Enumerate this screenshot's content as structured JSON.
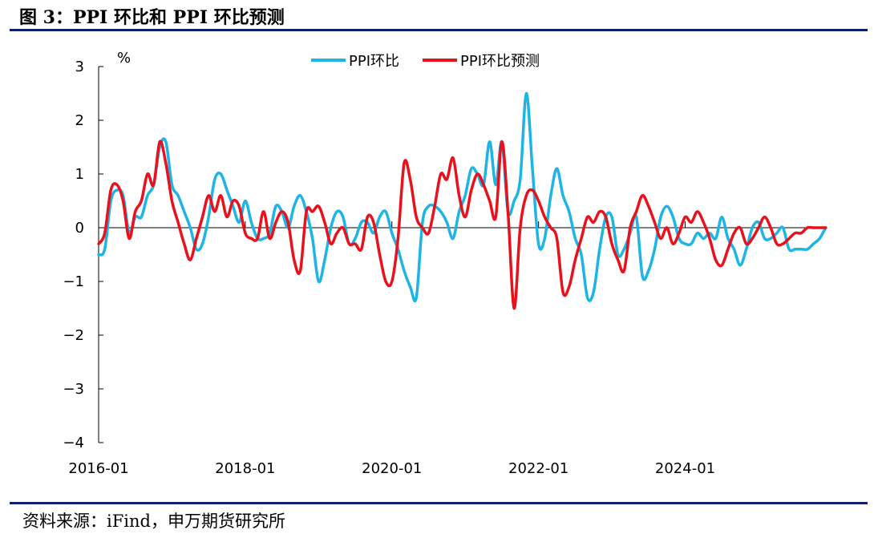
{
  "title": "图 3：PPI 环比和 PPI 环比预测",
  "source": "资料来源：iFind，申万期货研究所",
  "chart_data": {
    "type": "line",
    "ylabel": "%",
    "ylim": [
      -4,
      3
    ],
    "yticks": [
      3,
      2,
      1,
      0,
      -1,
      -2,
      -3,
      -4
    ],
    "ytick_labels": [
      "3",
      "2",
      "1",
      "0",
      "−1",
      "−2",
      "−3",
      "−4"
    ],
    "xticks": [
      "2016-01",
      "2018-01",
      "2020-01",
      "2022-01",
      "2024-01"
    ],
    "x_start": "2016-01",
    "x_end": "2025-12",
    "legend_position": "top-center",
    "series": [
      {
        "name": "PPI环比",
        "color": "#1eb4e6",
        "values": [
          -0.5,
          -0.4,
          0.5,
          0.7,
          0.6,
          -0.1,
          0.2,
          0.2,
          0.6,
          0.8,
          1.5,
          1.6,
          0.8,
          0.6,
          0.3,
          0.0,
          -0.4,
          -0.3,
          0.2,
          0.9,
          1.0,
          0.7,
          0.4,
          0.1,
          0.5,
          0.1,
          -0.2,
          -0.2,
          -0.1,
          0.4,
          0.3,
          0.0,
          0.4,
          0.6,
          0.3,
          -0.2,
          -1.0,
          -0.6,
          0.0,
          0.3,
          0.2,
          -0.3,
          -0.2,
          0.1,
          0.1,
          -0.1,
          0.2,
          0.3,
          -0.1,
          -0.4,
          -0.8,
          -1.1,
          -1.3,
          0.1,
          0.4,
          0.4,
          0.3,
          0.1,
          -0.2,
          0.3,
          0.6,
          1.1,
          1.0,
          0.8,
          1.6,
          0.8,
          1.6,
          0.3,
          0.5,
          0.9,
          2.5,
          1.1,
          -0.3,
          -0.2,
          0.6,
          1.1,
          0.6,
          0.3,
          -0.2,
          -0.5,
          -1.3,
          -1.2,
          -0.4,
          0.2,
          0.2,
          -0.5,
          -0.4,
          -0.1,
          0.2,
          -0.9,
          -0.8,
          -0.4,
          0.2,
          0.4,
          0.2,
          -0.2,
          -0.3,
          -0.3,
          -0.1,
          -0.2,
          -0.1,
          -0.2,
          0.2,
          -0.2,
          -0.4,
          -0.7,
          -0.4,
          0.0,
          0.1,
          -0.2,
          -0.2,
          -0.1,
          0.0,
          -0.4,
          -0.4,
          -0.4,
          -0.4,
          -0.3,
          -0.2,
          0.0
        ]
      },
      {
        "name": "PPI环比预测",
        "color": "#e8111c",
        "values": [
          -0.3,
          -0.1,
          0.7,
          0.8,
          0.5,
          -0.2,
          0.3,
          0.5,
          1.0,
          0.8,
          1.6,
          1.2,
          0.5,
          0.1,
          -0.3,
          -0.6,
          -0.2,
          0.2,
          0.6,
          0.3,
          0.6,
          0.2,
          0.5,
          0.4,
          -0.1,
          -0.2,
          -0.2,
          0.3,
          -0.2,
          0.1,
          0.3,
          0.1,
          -0.6,
          -0.8,
          0.3,
          0.3,
          0.4,
          0.1,
          -0.3,
          -0.1,
          0.0,
          -0.3,
          -0.3,
          -0.4,
          0.2,
          0.1,
          -0.5,
          -1.0,
          -1.0,
          -0.2,
          1.2,
          0.9,
          0.2,
          0.0,
          -0.1,
          0.4,
          1.0,
          0.9,
          1.3,
          0.6,
          0.2,
          0.7,
          1.0,
          0.8,
          0.5,
          0.2,
          1.6,
          0.3,
          -1.5,
          0.0,
          0.6,
          0.7,
          0.5,
          0.2,
          0.0,
          -0.2,
          -1.2,
          -1.1,
          -0.6,
          -0.2,
          0.2,
          0.1,
          0.3,
          0.2,
          -0.3,
          -0.6,
          -0.8,
          0.0,
          0.3,
          0.6,
          0.4,
          0.1,
          -0.2,
          0.0,
          -0.3,
          -0.1,
          0.2,
          0.1,
          0.3,
          0.1,
          -0.2,
          -0.6,
          -0.7,
          -0.4,
          -0.1,
          0.0,
          -0.3,
          -0.2,
          0.0,
          0.2,
          0.0,
          -0.3,
          -0.3,
          -0.2,
          -0.1,
          -0.1,
          0.0,
          0.0,
          0.0,
          0.0
        ]
      }
    ]
  }
}
